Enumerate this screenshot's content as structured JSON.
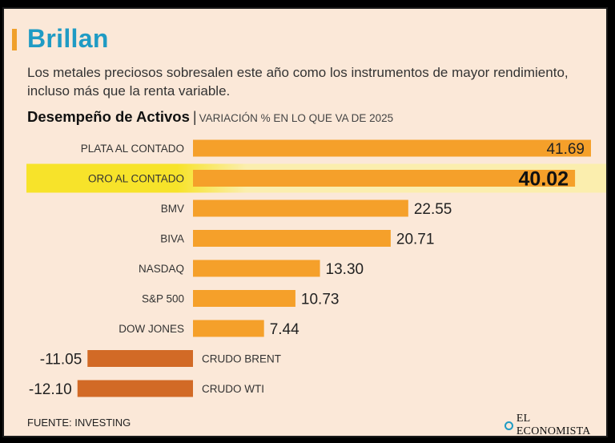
{
  "header": {
    "title": "Brillan",
    "subtitle": "Los metales preciosos sobresalen este año como los instrumentos de mayor rendimiento, incluso más que la renta variable."
  },
  "chart_heading": {
    "title": "Desempeño de Activos",
    "separator": "|",
    "subtitle": "VARIACIÓN % EN LO QUE VA DE 2025"
  },
  "chart_data": {
    "type": "bar",
    "orientation": "horizontal",
    "title": "Desempeño de Activos",
    "subtitle": "VARIACIÓN % EN LO QUE VA DE 2025",
    "categories": [
      "PLATA AL CONTADO",
      "ORO AL CONTADO",
      "BMV",
      "BIVA",
      "NASDAQ",
      "S&P 500",
      "DOW JONES",
      "CRUDO BRENT",
      "CRUDO WTI"
    ],
    "values": [
      41.69,
      40.02,
      22.55,
      20.71,
      13.3,
      10.73,
      7.44,
      -11.05,
      -12.1
    ],
    "labels": [
      "41.69",
      "40.02",
      "22.55",
      "20.71",
      "13.30",
      "10.73",
      "7.44",
      "-11.05",
      "-12.10"
    ],
    "highlighted_category": "ORO AL CONTADO",
    "xlim": [
      -12.1,
      41.69
    ],
    "unit": "%",
    "colors": {
      "positive": "#f5a02a",
      "negative": "#d26a26",
      "highlight_band": "#f7e32a",
      "highlight_band_fade": "#fbeeae"
    }
  },
  "footer": {
    "source": "FUENTE: INVESTING",
    "logo_text": "EL ECONOMISTA",
    "logo_icon": "el-economista-logo-icon"
  }
}
